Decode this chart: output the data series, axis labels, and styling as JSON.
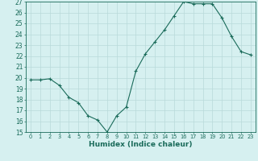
{
  "x": [
    0,
    1,
    2,
    3,
    4,
    5,
    6,
    7,
    8,
    9,
    10,
    11,
    12,
    13,
    14,
    15,
    16,
    17,
    18,
    19,
    20,
    21,
    22,
    23
  ],
  "y": [
    19.8,
    19.8,
    19.9,
    19.3,
    18.2,
    17.7,
    16.5,
    16.1,
    15.0,
    16.5,
    17.3,
    20.6,
    22.2,
    23.3,
    24.4,
    25.7,
    27.0,
    26.8,
    26.8,
    26.8,
    25.5,
    23.8,
    22.4,
    22.1
  ],
  "line_color": "#1a6b5a",
  "marker": "+",
  "bg_color": "#d6f0f0",
  "grid_color": "#b8dada",
  "axis_color": "#1a6b5a",
  "xlabel": "Humidex (Indice chaleur)",
  "ylim": [
    15,
    27
  ],
  "xlim_min": -0.5,
  "xlim_max": 23.5,
  "yticks": [
    15,
    16,
    17,
    18,
    19,
    20,
    21,
    22,
    23,
    24,
    25,
    26,
    27
  ],
  "xtick_labels": [
    "0",
    "1",
    "2",
    "3",
    "4",
    "5",
    "6",
    "7",
    "8",
    "9",
    "10",
    "11",
    "12",
    "13",
    "14",
    "15",
    "16",
    "17",
    "18",
    "19",
    "20",
    "21",
    "22",
    "23"
  ],
  "font_size_ytick": 5.5,
  "font_size_xtick": 4.8,
  "font_size_label": 6.5
}
